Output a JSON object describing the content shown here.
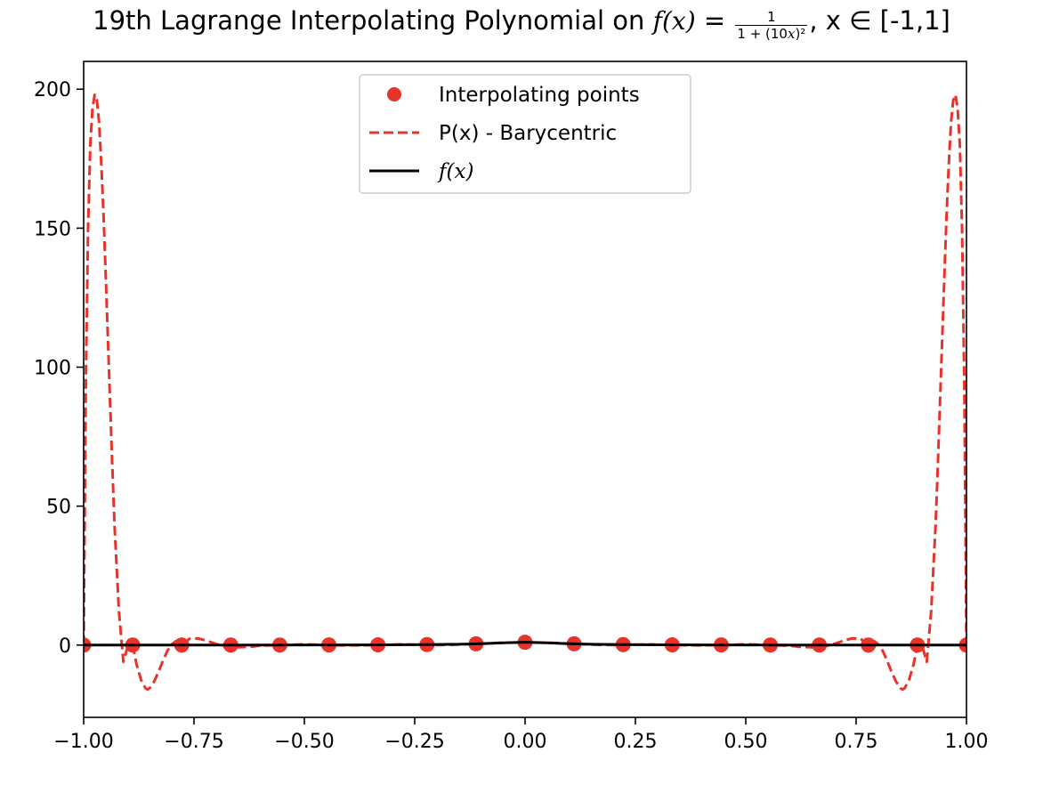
{
  "chart_data": {
    "type": "line",
    "title": {
      "prefix": "19th Lagrange Interpolating Polynomial on ",
      "f_symbol": "f(x)",
      "equals": " = ",
      "fraction_numerator": "1",
      "fraction_denominator_pre": "1 + (10",
      "fraction_denominator_var": "x",
      "fraction_denominator_post": ")²",
      "suffix": ", x ∈ [-1,1]"
    },
    "xlabel": "",
    "ylabel": "",
    "xlim": [
      -1.0,
      1.0
    ],
    "ylim": [
      -26,
      210
    ],
    "x_ticks": [
      -1.0,
      -0.75,
      -0.5,
      -0.25,
      0.0,
      0.25,
      0.5,
      0.75,
      1.0
    ],
    "x_tick_labels": [
      "−1.00",
      "−0.75",
      "−0.50",
      "−0.25",
      "0.00",
      "0.25",
      "0.50",
      "0.75",
      "1.00"
    ],
    "y_ticks": [
      0,
      50,
      100,
      150,
      200
    ],
    "y_tick_labels": [
      "0",
      "50",
      "100",
      "150",
      "200"
    ],
    "grid": false,
    "legend_position": "top-center",
    "series": [
      {
        "name": "Interpolating points",
        "style": "markers",
        "color": "#e8332a",
        "x": [
          -1.0,
          -0.8889,
          -0.7778,
          -0.6667,
          -0.5556,
          -0.4444,
          -0.3333,
          -0.2222,
          -0.1111,
          0.0,
          0.1111,
          0.2222,
          0.3333,
          0.4444,
          0.5556,
          0.6667,
          0.7778,
          0.8889,
          1.0
        ],
        "y": [
          0.0099,
          0.0125,
          0.0163,
          0.022,
          0.0314,
          0.0481,
          0.0826,
          0.1684,
          0.4475,
          1.0,
          0.4475,
          0.1684,
          0.0826,
          0.0481,
          0.0314,
          0.022,
          0.0163,
          0.0125,
          0.0099
        ]
      },
      {
        "name": "P(x) - Barycentric",
        "style": "dashed",
        "color": "#e8332a",
        "x": [
          -1.0,
          -0.995,
          -0.99,
          -0.985,
          -0.98,
          -0.975,
          -0.97,
          -0.965,
          -0.96,
          -0.955,
          -0.95,
          -0.945,
          -0.94,
          -0.935,
          -0.93,
          -0.92,
          -0.91,
          -0.9,
          -0.889,
          -0.88,
          -0.87,
          -0.86,
          -0.855,
          -0.85,
          -0.84,
          -0.83,
          -0.82,
          -0.81,
          -0.8,
          -0.79,
          -0.778,
          -0.76,
          -0.74,
          -0.72,
          -0.7,
          -0.68,
          -0.667,
          -0.65,
          -0.62,
          -0.6,
          -0.556,
          -0.5,
          -0.444,
          -0.4,
          -0.333,
          -0.28,
          -0.222,
          -0.17,
          -0.111,
          -0.06,
          0.0,
          0.06,
          0.111,
          0.17,
          0.222,
          0.28,
          0.333,
          0.4,
          0.444,
          0.5,
          0.556,
          0.6,
          0.62,
          0.65,
          0.667,
          0.68,
          0.7,
          0.72,
          0.74,
          0.76,
          0.778,
          0.79,
          0.8,
          0.81,
          0.82,
          0.83,
          0.84,
          0.85,
          0.855,
          0.86,
          0.87,
          0.88,
          0.889,
          0.9,
          0.91,
          0.92,
          0.93,
          0.935,
          0.94,
          0.945,
          0.95,
          0.955,
          0.96,
          0.965,
          0.97,
          0.975,
          0.98,
          0.985,
          0.99,
          0.995,
          1.0
        ],
        "y": [
          0.0,
          95,
          150,
          180,
          193,
          198,
          196,
          188,
          173,
          155,
          133,
          110,
          87,
          64,
          43,
          12,
          -6,
          -0.5,
          0.0,
          -7,
          -12.5,
          -15.5,
          -16,
          -15.4,
          -13,
          -9.5,
          -5.5,
          -2,
          0.3,
          1.5,
          0.0,
          2.3,
          2.4,
          1.5,
          0.4,
          -0.4,
          0.0,
          -0.8,
          -0.6,
          -0.2,
          0.0,
          0.27,
          0.0,
          -0.1,
          0.0,
          0.26,
          0.0,
          0.06,
          0.45,
          0.8,
          1.0,
          0.8,
          0.45,
          0.06,
          0.0,
          0.26,
          0.0,
          -0.1,
          0.0,
          0.27,
          0.0,
          -0.2,
          -0.6,
          -0.8,
          0.0,
          -0.4,
          0.4,
          1.5,
          2.4,
          2.3,
          0.0,
          1.5,
          0.3,
          -2,
          -5.5,
          -9.5,
          -13,
          -15.4,
          -16,
          -15.5,
          -12.5,
          -7,
          0.0,
          -0.5,
          -6,
          12,
          43,
          64,
          87,
          110,
          133,
          155,
          173,
          188,
          196,
          198,
          193,
          180,
          150,
          95,
          0.0
        ]
      },
      {
        "name": "f(x)",
        "style": "solid",
        "color": "#000000",
        "x": [
          -1.0,
          -0.8,
          -0.6,
          -0.4,
          -0.3,
          -0.2,
          -0.15,
          -0.1,
          -0.05,
          0.0,
          0.05,
          0.1,
          0.15,
          0.2,
          0.3,
          0.4,
          0.6,
          0.8,
          1.0
        ],
        "y": [
          0.0099,
          0.0154,
          0.027,
          0.0588,
          0.1,
          0.2,
          0.3077,
          0.5,
          0.8,
          1.0,
          0.8,
          0.5,
          0.3077,
          0.2,
          0.1,
          0.0588,
          0.027,
          0.0154,
          0.0099
        ]
      }
    ]
  }
}
